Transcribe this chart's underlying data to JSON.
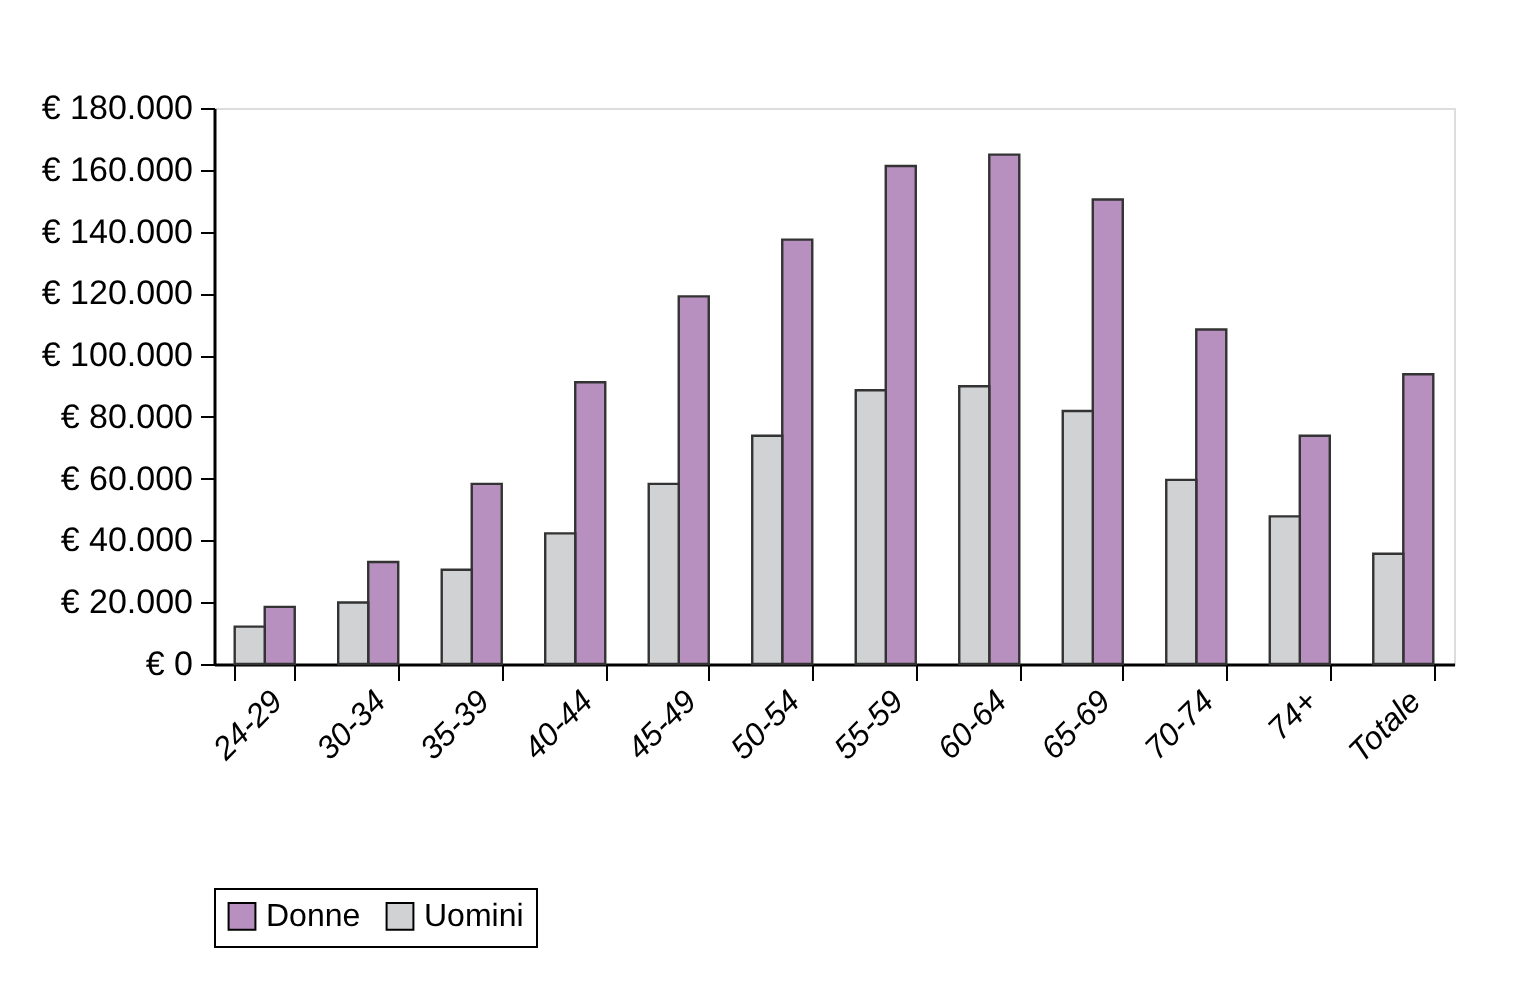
{
  "chart_data": {
    "type": "bar",
    "categories": [
      "24-29",
      "30-34",
      "35-39",
      "40-44",
      "45-49",
      "50-54",
      "55-59",
      "60-64",
      "65-69",
      "70-74",
      "74+",
      "Totale"
    ],
    "series": [
      {
        "name": "Donne",
        "color": "#b890c0",
        "values": [
          18500,
          33000,
          58300,
          91200,
          119000,
          137400,
          161200,
          164900,
          150400,
          108300,
          73900,
          93800
        ]
      },
      {
        "name": "Uomini",
        "color": "#d0d2d4",
        "values": [
          12100,
          19900,
          30500,
          42300,
          58300,
          73900,
          88600,
          89900,
          81900,
          59600,
          47800,
          35700
        ]
      }
    ],
    "ylim": [
      0,
      180000
    ],
    "yticks": [
      {
        "value": 0,
        "label": "€ 0"
      },
      {
        "value": 20000,
        "label": "€ 20.000"
      },
      {
        "value": 40000,
        "label": "€ 40.000"
      },
      {
        "value": 60000,
        "label": "€ 60.000"
      },
      {
        "value": 80000,
        "label": "€ 80.000"
      },
      {
        "value": 100000,
        "label": "€ 100.000"
      },
      {
        "value": 120000,
        "label": "€ 120.000"
      },
      {
        "value": 140000,
        "label": "€ 140.000"
      },
      {
        "value": 160000,
        "label": "€ 160.000"
      },
      {
        "value": 180000,
        "label": "€ 180.000"
      }
    ],
    "grid": false,
    "legend": "bottom"
  }
}
